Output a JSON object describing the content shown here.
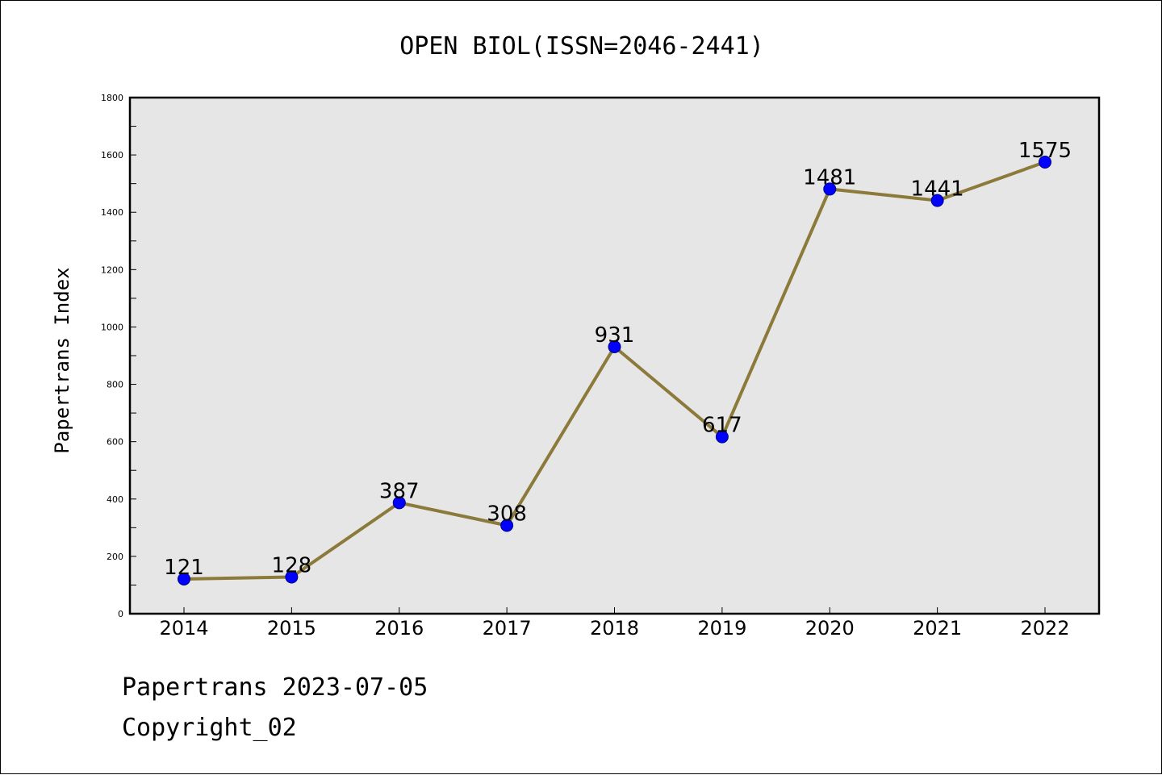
{
  "chart_data": {
    "type": "line",
    "title": "OPEN BIOL(ISSN=2046-2441)",
    "xlabel": "",
    "ylabel": "Papertrans Index",
    "categories": [
      "2014",
      "2015",
      "2016",
      "2017",
      "2018",
      "2019",
      "2020",
      "2021",
      "2022"
    ],
    "values": [
      121,
      128,
      387,
      308,
      931,
      617,
      1481,
      1441,
      1575
    ],
    "data_labels": [
      "121",
      "128",
      "387",
      "308",
      "931",
      "617",
      "1481",
      "1441",
      "1575"
    ],
    "ylim": [
      0,
      1800
    ],
    "yticks": [
      0,
      200,
      400,
      600,
      800,
      1000,
      1200,
      1400,
      1600,
      1800
    ],
    "grid": false,
    "colors": {
      "line": "#8b7a3a",
      "marker": "#0000ff",
      "plot_background": "#e6e6e6"
    }
  },
  "footer": {
    "source": "Papertrans 2023-07-05",
    "copyright": "Copyright_02"
  }
}
